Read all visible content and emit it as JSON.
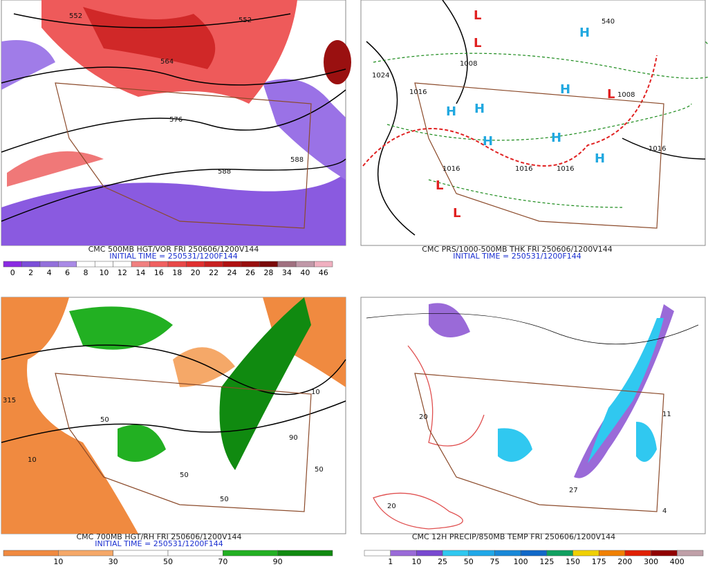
{
  "panels": [
    {
      "caption": "CMC 500MB HGT/VOR FRI 250606/1200V144",
      "initial_time": "INITIAL TIME = 250531/1200F144",
      "map_labels": [
        "552",
        "552",
        "564",
        "576",
        "588",
        "588"
      ],
      "colorbar": {
        "labels": [
          "0",
          "2",
          "4",
          "6",
          "8",
          "10",
          "12",
          "14",
          "16",
          "18",
          "20",
          "22",
          "24",
          "26",
          "28",
          "34",
          "40",
          "46"
        ],
        "colors": [
          "#8a2be2",
          "#7b4fd8",
          "#9370db",
          "#a98ae6",
          "#ffffff",
          "#ffffff",
          "#ffffff",
          "#f08080",
          "#f06060",
          "#e84848",
          "#e03030",
          "#c82020",
          "#b01010",
          "#981010",
          "#7a0a0a",
          "#a07080",
          "#c098a8",
          "#f0b0c0"
        ]
      }
    },
    {
      "caption": "CMC PRS/1000-500MB THK FRI 250606/1200V144",
      "initial_time": "INITIAL TIME = 250531/1200F144",
      "map_labels": [
        "1024",
        "1008",
        "1016",
        "1016",
        "1016",
        "1016",
        "1008",
        "1016",
        "540",
        "H",
        "H",
        "H",
        "H",
        "H",
        "H",
        "H",
        "L",
        "L",
        "L",
        "L",
        "L"
      ]
    },
    {
      "caption": "CMC 700MB HGT/RH FRI 250606/1200V144",
      "initial_time": "INITIAL TIME = 250531/1200F144",
      "map_labels": [
        "315",
        "10",
        "50",
        "50",
        "50",
        "50",
        "90",
        "10"
      ],
      "colorbar": {
        "labels": [
          "10",
          "30",
          "50",
          "70",
          "90"
        ],
        "colors": [
          "#f08a40",
          "#f5a868",
          "#ffffff",
          "#ffffff",
          "#22b022",
          "#108a10"
        ]
      }
    },
    {
      "caption": "CMC 12H PRECIP/850MB TEMP FRI 250606/1200V144",
      "map_labels": [
        "20",
        "20",
        "11",
        "4",
        "27"
      ],
      "colorbar": {
        "labels": [
          "1",
          "10",
          "25",
          "50",
          "75",
          "100",
          "125",
          "150",
          "175",
          "200",
          "300",
          "400"
        ],
        "colors": [
          "#ffffff",
          "#9a6ad8",
          "#7848d0",
          "#30c8f0",
          "#20a8e8",
          "#1888d8",
          "#1068c8",
          "#10a060",
          "#f0d000",
          "#f08000",
          "#e02000",
          "#900000",
          "#c0a0a8"
        ]
      }
    }
  ]
}
